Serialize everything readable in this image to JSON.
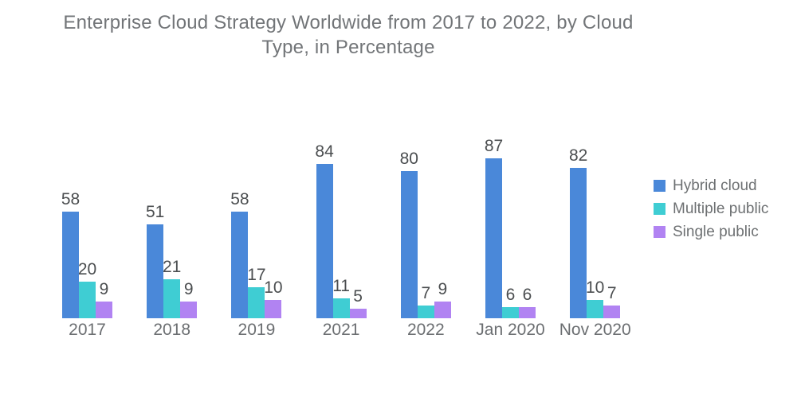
{
  "title_lines": [
    "Enterprise Cloud Strategy Worldwide from 2017 to 2022, by Cloud",
    "Type, in Percentage"
  ],
  "chart_data": {
    "type": "bar",
    "title": "Enterprise Cloud Strategy Worldwide from 2017 to 2022, by Cloud Type, in Percentage",
    "categories": [
      "2017",
      "2018",
      "2019",
      "2021",
      "2022",
      "Jan 2020",
      "Nov 2020"
    ],
    "series": [
      {
        "name": "Hybrid cloud",
        "color": "#4a88d9",
        "values": [
          58,
          51,
          58,
          84,
          80,
          87,
          82
        ]
      },
      {
        "name": "Multiple public",
        "color": "#3fcdd3",
        "values": [
          20,
          21,
          17,
          11,
          7,
          6,
          10
        ]
      },
      {
        "name": "Single public",
        "color": "#b183f2",
        "values": [
          9,
          9,
          10,
          5,
          9,
          6,
          7
        ]
      }
    ],
    "ylim": [
      0,
      100
    ],
    "grid": false,
    "axes_visible": false,
    "value_labels": true,
    "legend_position": "right",
    "colors": {
      "background": "#ffffff",
      "title_text": "#727578",
      "value_label_text": "#4b4e50",
      "category_label_text": "#6b6e71",
      "legend_text": "#6d7072"
    }
  }
}
